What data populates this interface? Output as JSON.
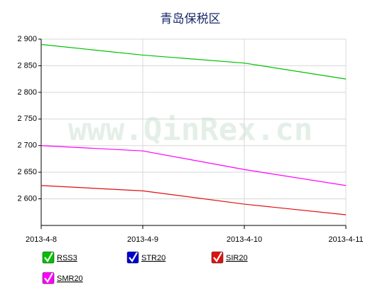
{
  "chart_data": {
    "type": "line",
    "title": "青岛保税区",
    "watermark": "www.QinRex.cn",
    "categories": [
      "2013-4-8",
      "2013-4-9",
      "2013-4-10",
      "2013-4-11"
    ],
    "series": [
      {
        "name": "RSS3",
        "color": "#00c000",
        "values": [
          2890,
          2870,
          2855,
          2825
        ]
      },
      {
        "name": "STR20",
        "color": "#0000cc",
        "values": [
          null,
          null,
          null,
          null
        ]
      },
      {
        "name": "SIR20",
        "color": "#e01010",
        "values": [
          2625,
          2615,
          2590,
          2570
        ]
      },
      {
        "name": "SMR20",
        "color": "#ff00ff",
        "values": [
          2700,
          2690,
          2655,
          2625
        ]
      }
    ],
    "ylim": [
      2550,
      2900
    ],
    "yticks": [
      {
        "value": 2600,
        "label": "2 600"
      },
      {
        "value": 2650,
        "label": "2 650"
      },
      {
        "value": 2700,
        "label": "2 700"
      },
      {
        "value": 2750,
        "label": "2 750"
      },
      {
        "value": 2800,
        "label": "2 800"
      },
      {
        "value": 2850,
        "label": "2 850"
      },
      {
        "value": 2900,
        "label": "2 900"
      }
    ],
    "grid": true
  }
}
